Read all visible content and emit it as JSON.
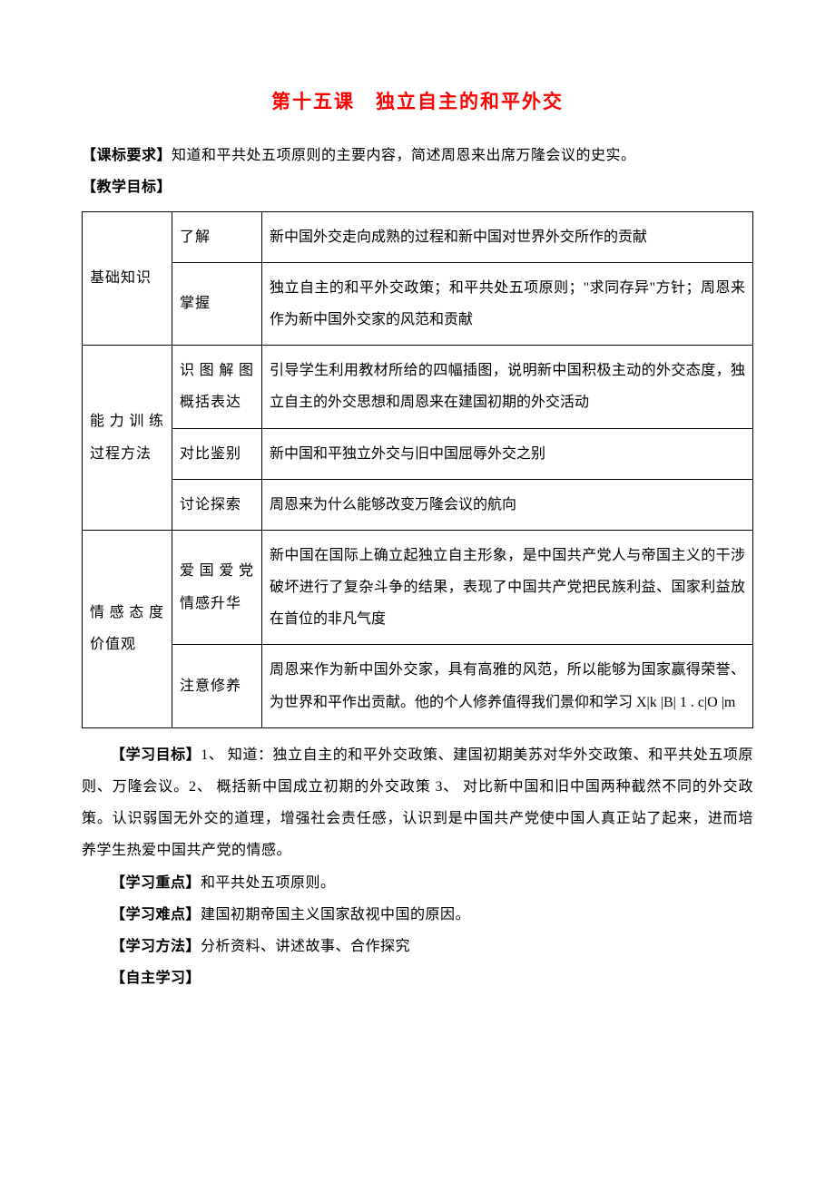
{
  "title": "第十五课　独立自主的和平外交",
  "req": {
    "label": "【课标要求】",
    "text": "知道和平共处五项原则的主要内容，简述周恩来出席万隆会议的史实。"
  },
  "objectives_label": "【教学目标】",
  "table": {
    "r1": {
      "cat": "基础知识",
      "sub": "了解",
      "content": "新中国外交走向成熟的过程和新中国对世界外交所作的贡献"
    },
    "r2": {
      "sub": "掌握",
      "content": "独立自主的和平外交政策；和平共处五项原则；\"求同存异\"方针；周恩来作为新中国外交家的风范和贡献"
    },
    "r3": {
      "cat": "能力训练过程方法",
      "sub": "识图解图概括表达",
      "content": "引导学生利用教材所给的四幅插图，说明新中国积极主动的外交态度，独立自主的外交思想和周恩来在建国初期的外交活动"
    },
    "r4": {
      "sub": "对比鉴别",
      "content": "新中国和平独立外交与旧中国屈辱外交之别"
    },
    "r5": {
      "sub": "讨论探索",
      "content": "周恩来为什么能够改变万隆会议的航向"
    },
    "r6": {
      "cat": "情感态度价值观",
      "sub": "爱国爱党情感升华",
      "content": "新中国在国际上确立起独立自主形象，是中国共产党人与帝国主义的干涉破坏进行了复杂斗争的结果，表现了中国共产党把民族利益、国家利益放在首位的非凡气度"
    },
    "r7": {
      "sub": "注意修养",
      "content": "周恩来作为新中国外交家，具有高雅的风范，所以能够为国家赢得荣誉、为世界和平作出贡献。他的个人修养值得我们景仰和学习 X|k |B| 1 . c|O |m"
    }
  },
  "study_goals": {
    "label": "【学习目标】",
    "text": "1、 知道：独立自主的和平外交政策、建国初期美苏对华外交政策、和平共处五项原则、万隆会议。2、  概括新中国成立初期的外交政策 3、 对比新中国和旧中国两种截然不同的外交政策。认识弱国无外交的道理，增强社会责任感，认识到是中国共产党使中国人真正站了起来，进而培养学生热爱中国共产党的情感。"
  },
  "focus": {
    "label": "【学习重点】",
    "text": "和平共处五项原则。"
  },
  "difficulty": {
    "label": "【学习难点】",
    "text": "建国初期帝国主义国家敌视中国的原因。"
  },
  "method": {
    "label": "【学习方法】",
    "text": "分析资料、讲述故事、合作探究"
  },
  "self_study": {
    "label": "【自主学习】"
  }
}
